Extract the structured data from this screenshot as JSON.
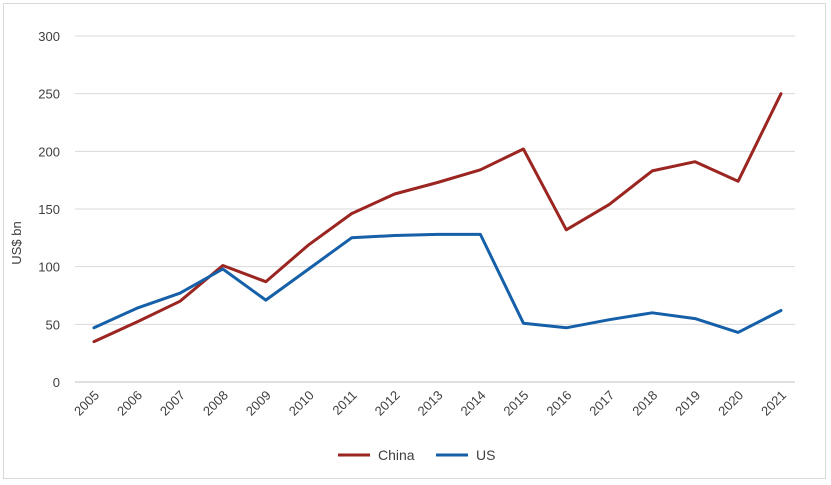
{
  "chart_data": {
    "type": "line",
    "title": "",
    "xlabel": "",
    "ylabel": "US$ bn",
    "categories": [
      "2005",
      "2006",
      "2007",
      "2008",
      "2009",
      "2010",
      "2011",
      "2012",
      "2013",
      "2014",
      "2015",
      "2016",
      "2017",
      "2018",
      "2019",
      "2020",
      "2021"
    ],
    "ylim": [
      0,
      300
    ],
    "yticks": [
      0,
      50,
      100,
      150,
      200,
      250,
      300
    ],
    "grid": true,
    "legend_position": "bottom",
    "series": [
      {
        "name": "China",
        "color": "#9b2520",
        "values": [
          35,
          52,
          70,
          101,
          87,
          119,
          146,
          163,
          173,
          184,
          202,
          132,
          154,
          183,
          191,
          174,
          250
        ]
      },
      {
        "name": "US",
        "color": "#1560a8",
        "values": [
          47,
          64,
          77,
          98,
          71,
          98,
          125,
          127,
          128,
          128,
          51,
          47,
          54,
          60,
          55,
          43,
          62
        ]
      }
    ]
  }
}
